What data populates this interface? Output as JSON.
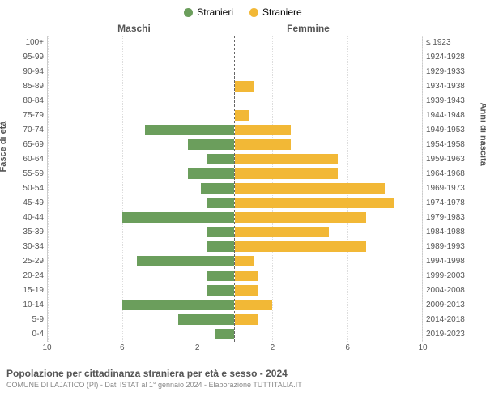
{
  "chart": {
    "type": "population-pyramid",
    "legend": [
      {
        "label": "Stranieri",
        "color": "#6b9e5c"
      },
      {
        "label": "Straniere",
        "color": "#f2b836"
      }
    ],
    "column_headers": {
      "left": "Maschi",
      "right": "Femmine"
    },
    "yaxis_left_title": "Fasce di età",
    "yaxis_right_title": "Anni di nascita",
    "age_labels": [
      "100+",
      "95-99",
      "90-94",
      "85-89",
      "80-84",
      "75-79",
      "70-74",
      "65-69",
      "60-64",
      "55-59",
      "50-54",
      "45-49",
      "40-44",
      "35-39",
      "30-34",
      "25-29",
      "20-24",
      "15-19",
      "10-14",
      "5-9",
      "0-4"
    ],
    "birth_labels": [
      "≤ 1923",
      "1924-1928",
      "1929-1933",
      "1934-1938",
      "1939-1943",
      "1944-1948",
      "1949-1953",
      "1954-1958",
      "1959-1963",
      "1964-1968",
      "1969-1973",
      "1974-1978",
      "1979-1983",
      "1984-1988",
      "1989-1993",
      "1994-1998",
      "1999-2003",
      "2004-2008",
      "2009-2013",
      "2014-2018",
      "2019-2023"
    ],
    "male_values": [
      0,
      0,
      0,
      0,
      0,
      0,
      4.8,
      2.5,
      1.5,
      2.5,
      1.8,
      1.5,
      6.0,
      1.5,
      1.5,
      5.2,
      1.5,
      1.5,
      6.0,
      3.0,
      1.0
    ],
    "female_values": [
      0,
      0,
      0,
      1.0,
      0,
      0.8,
      3.0,
      3.0,
      5.5,
      5.5,
      8.0,
      8.5,
      7.0,
      5.0,
      7.0,
      1.0,
      1.2,
      1.2,
      2.0,
      1.2,
      0
    ],
    "male_color": "#6b9e5c",
    "female_color": "#f2b836",
    "x_ticks": [
      10,
      6,
      2,
      2,
      6,
      10
    ],
    "x_max": 10,
    "grid_color": "#dddddd",
    "label_fontsize": 10,
    "title_fontsize": 12
  },
  "footer": {
    "title": "Popolazione per cittadinanza straniera per età e sesso - 2024",
    "subtitle": "COMUNE DI LAJATICO (PI) - Dati ISTAT al 1° gennaio 2024 - Elaborazione TUTTITALIA.IT"
  }
}
